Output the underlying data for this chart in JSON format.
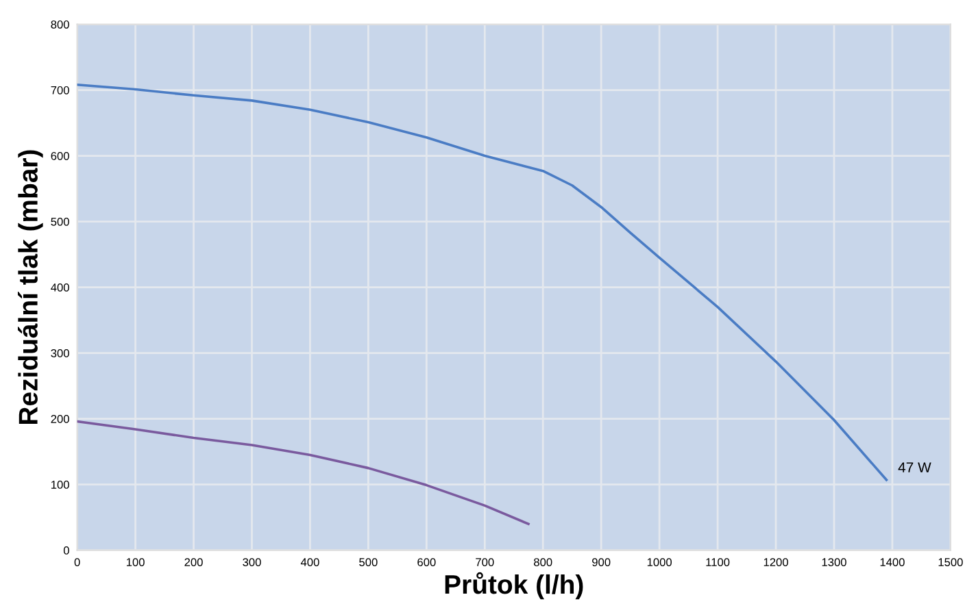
{
  "chart_data": {
    "type": "line",
    "xlabel": "Průtok (l/h)",
    "ylabel": "Reziduální tlak (mbar)",
    "xlim": [
      0,
      1500
    ],
    "xticks": [
      0,
      100,
      200,
      300,
      400,
      500,
      600,
      700,
      800,
      900,
      1000,
      1100,
      1200,
      1300,
      1400,
      1500
    ],
    "ylim": [
      0,
      800
    ],
    "yticks": [
      0,
      100,
      200,
      300,
      400,
      500,
      600,
      700,
      800
    ],
    "grid": true,
    "series": [
      {
        "color": "#4a7cc4",
        "x": [
          0,
          100,
          200,
          300,
          400,
          500,
          600,
          700,
          800,
          850,
          900,
          950,
          1000,
          1100,
          1200,
          1300,
          1390
        ],
        "values": [
          708,
          701,
          692,
          684,
          670,
          651,
          628,
          600,
          577,
          555,
          522,
          483,
          445,
          370,
          287,
          198,
          107
        ]
      },
      {
        "color": "#7a5a9e",
        "x": [
          0,
          100,
          200,
          300,
          400,
          500,
          600,
          700,
          775
        ],
        "values": [
          196,
          184,
          171,
          160,
          145,
          125,
          99,
          68,
          40
        ]
      }
    ],
    "annotations": [
      {
        "text": "47 W",
        "x": 1390,
        "y": 107
      }
    ]
  }
}
